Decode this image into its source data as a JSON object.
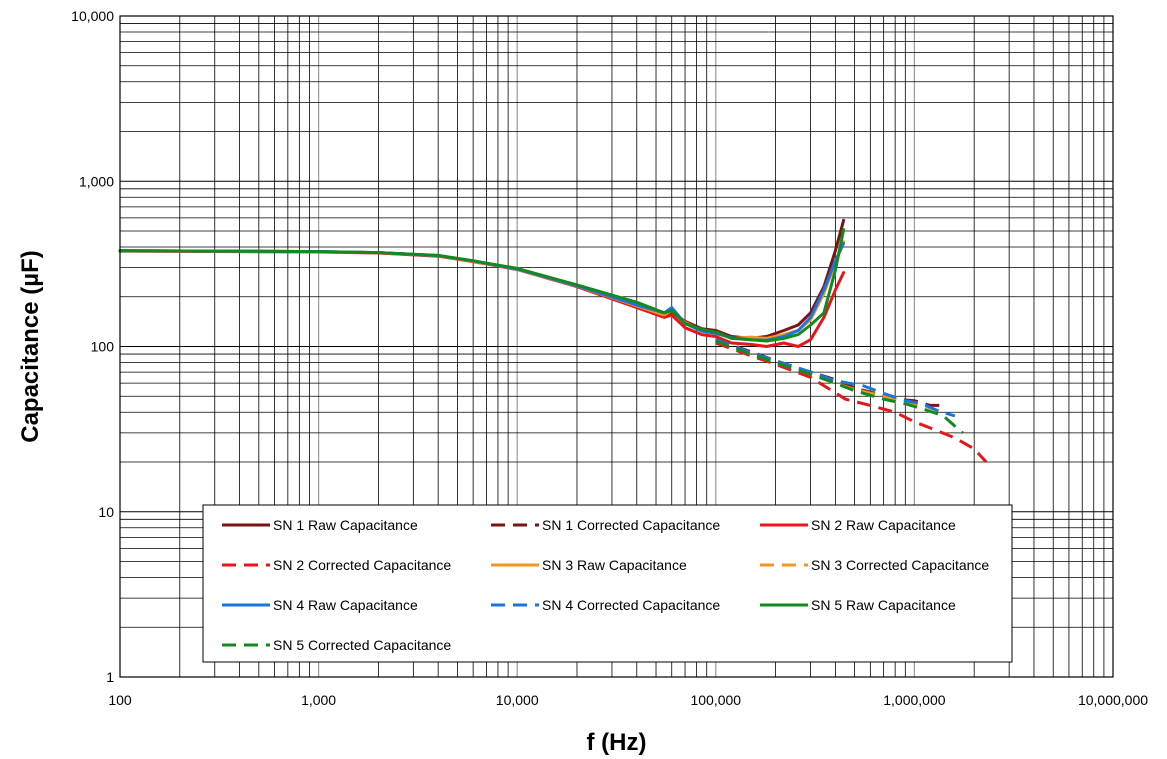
{
  "chart_data": {
    "type": "line",
    "title": "",
    "xlabel": "f (Hz)",
    "ylabel": "Capacitance (µF)",
    "x_scale": "log",
    "y_scale": "log",
    "xlim": [
      100,
      10000000
    ],
    "ylim": [
      1,
      10000
    ],
    "grid": true,
    "legend_position": "bottom-center",
    "x_ticks": [
      {
        "value": 100,
        "label": "100"
      },
      {
        "value": 1000,
        "label": "1,000"
      },
      {
        "value": 10000,
        "label": "10,000"
      },
      {
        "value": 100000,
        "label": "100,000"
      },
      {
        "value": 1000000,
        "label": "1,000,000"
      },
      {
        "value": 10000000,
        "label": "10,000,000"
      }
    ],
    "y_ticks": [
      {
        "value": 1,
        "label": "1"
      },
      {
        "value": 10,
        "label": "10"
      },
      {
        "value": 100,
        "label": "100"
      },
      {
        "value": 1000,
        "label": "1,000"
      },
      {
        "value": 10000,
        "label": "10,000"
      }
    ],
    "series": [
      {
        "name": "SN 1 Raw Capacitance",
        "color": "#7B1416",
        "dash": "solid",
        "x": [
          100,
          300,
          1000,
          2000,
          4000,
          6000,
          10000,
          20000,
          40000,
          55000,
          60000,
          70000,
          85000,
          100000,
          120000,
          150000,
          180000,
          220000,
          260000,
          300000,
          350000,
          400000,
          440000
        ],
        "y": [
          380,
          378,
          375,
          370,
          355,
          330,
          295,
          235,
          180,
          155,
          162,
          142,
          128,
          125,
          115,
          112,
          115,
          125,
          135,
          160,
          230,
          380,
          580
        ]
      },
      {
        "name": "SN 1 Corrected Capacitance",
        "color": "#7B1416",
        "dash": "dashed",
        "x": [
          100000,
          150000,
          200000,
          300000,
          400000,
          500000,
          600000,
          800000,
          1000000,
          1200000,
          1350000
        ],
        "y": [
          110,
          93,
          82,
          70,
          63,
          56,
          53,
          48,
          47,
          44,
          44
        ]
      },
      {
        "name": "SN 2 Raw Capacitance",
        "color": "#E8151B",
        "dash": "solid",
        "x": [
          100,
          300,
          1000,
          2000,
          4000,
          6000,
          10000,
          20000,
          40000,
          55000,
          60000,
          70000,
          85000,
          100000,
          120000,
          150000,
          180000,
          220000,
          260000,
          300000,
          350000,
          400000,
          440000
        ],
        "y": [
          378,
          376,
          373,
          368,
          352,
          326,
          292,
          230,
          172,
          150,
          155,
          130,
          118,
          115,
          105,
          103,
          100,
          105,
          100,
          110,
          150,
          220,
          280
        ]
      },
      {
        "name": "SN 2 Corrected Capacitance",
        "color": "#E8151B",
        "dash": "dashed",
        "x": [
          100000,
          150000,
          200000,
          300000,
          450000,
          600000,
          800000,
          1000000,
          1300000,
          1600000,
          2000000,
          2300000
        ],
        "y": [
          105,
          88,
          78,
          65,
          48,
          44,
          40,
          35,
          31,
          28,
          24,
          20
        ]
      },
      {
        "name": "SN 3 Raw Capacitance",
        "color": "#F7941D",
        "dash": "solid",
        "x": [
          100,
          300,
          1000,
          2000,
          4000,
          6000,
          10000,
          20000,
          40000,
          55000,
          60000,
          70000,
          85000,
          100000,
          120000,
          150000,
          180000,
          220000,
          260000,
          300000,
          350000,
          400000,
          440000
        ],
        "y": [
          379,
          377,
          374,
          369,
          354,
          328,
          293,
          232,
          176,
          155,
          165,
          140,
          125,
          122,
          112,
          114,
          112,
          118,
          125,
          145,
          210,
          320,
          430
        ]
      },
      {
        "name": "SN 3 Corrected Capacitance",
        "color": "#F7941D",
        "dash": "dashed",
        "x": [
          100000,
          150000,
          200000,
          300000,
          400000,
          500000,
          700000,
          900000,
          1100000,
          1400000
        ],
        "y": [
          108,
          90,
          80,
          68,
          60,
          55,
          50,
          46,
          44,
          40
        ]
      },
      {
        "name": "SN 4 Raw Capacitance",
        "color": "#1B75E0",
        "dash": "solid",
        "x": [
          100,
          300,
          1000,
          2000,
          4000,
          6000,
          10000,
          20000,
          40000,
          55000,
          60000,
          70000,
          85000,
          100000,
          120000,
          150000,
          180000,
          220000,
          260000,
          300000,
          350000,
          400000,
          440000
        ],
        "y": [
          380,
          378,
          375,
          370,
          355,
          330,
          294,
          233,
          178,
          160,
          172,
          138,
          124,
          120,
          113,
          110,
          109,
          115,
          125,
          150,
          220,
          330,
          420
        ]
      },
      {
        "name": "SN 4 Corrected Capacitance",
        "color": "#1B75E0",
        "dash": "dashed",
        "x": [
          100000,
          150000,
          200000,
          300000,
          400000,
          550000,
          700000,
          900000,
          1100000,
          1300000,
          1600000
        ],
        "y": [
          110,
          92,
          82,
          70,
          62,
          58,
          52,
          47,
          45,
          41,
          38
        ]
      },
      {
        "name": "SN 5 Raw Capacitance",
        "color": "#138A1F",
        "dash": "solid",
        "x": [
          100,
          300,
          1000,
          2000,
          4000,
          6000,
          10000,
          20000,
          40000,
          55000,
          60000,
          70000,
          85000,
          100000,
          120000,
          150000,
          180000,
          220000,
          260000,
          300000,
          350000,
          400000,
          440000
        ],
        "y": [
          380,
          378,
          375,
          370,
          356,
          330,
          297,
          236,
          185,
          160,
          165,
          138,
          127,
          122,
          112,
          110,
          108,
          112,
          118,
          135,
          160,
          290,
          510
        ]
      },
      {
        "name": "SN 5 Corrected Capacitance",
        "color": "#138A1F",
        "dash": "dashed",
        "x": [
          100000,
          150000,
          200000,
          300000,
          400000,
          500000,
          700000,
          900000,
          1100000,
          1400000,
          1750000
        ],
        "y": [
          108,
          90,
          80,
          68,
          60,
          54,
          48,
          45,
          42,
          38,
          30
        ]
      }
    ]
  }
}
